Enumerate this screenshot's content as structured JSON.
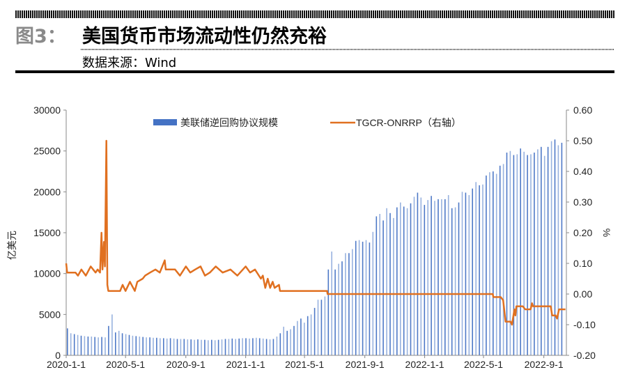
{
  "header": {
    "figure_label": "图3：",
    "title": "美国货币市场流动性仍然充裕",
    "source": "数据来源：Wind"
  },
  "colors": {
    "bars": "#4472c4",
    "line": "#e07020",
    "title_gray": "#8a8a8a"
  },
  "chart_data": {
    "type": "bar+line",
    "title": "美国货币市场流动性仍然充裕",
    "ylabel": "亿美元",
    "y2label": "%",
    "ylim": [
      0,
      30000
    ],
    "y2lim": [
      -0.2,
      0.6
    ],
    "xlim": [
      "2020-01-01",
      "2022-10-17"
    ],
    "yticks": [
      "0",
      "5000",
      "10000",
      "15000",
      "20000",
      "25000",
      "30000"
    ],
    "y2ticks": [
      "-0.20",
      "-0.10",
      "0.00",
      "0.10",
      "0.20",
      "0.30",
      "0.40",
      "0.50",
      "0.60"
    ],
    "xticks": [
      {
        "date": "2020-01-01",
        "label": "2020-1-1"
      },
      {
        "date": "2020-05-01",
        "label": "2020-5-1"
      },
      {
        "date": "2020-09-01",
        "label": "2020-9-1"
      },
      {
        "date": "2021-01-01",
        "label": "2021-1-1"
      },
      {
        "date": "2021-05-01",
        "label": "2021-5-1"
      },
      {
        "date": "2021-09-01",
        "label": "2021-9-1"
      },
      {
        "date": "2022-01-01",
        "label": "2022-1-1"
      },
      {
        "date": "2022-05-01",
        "label": "2022-5-1"
      },
      {
        "date": "2022-09-01",
        "label": "2022-9-1"
      }
    ],
    "legend": [
      {
        "label": "美联储逆回购协议规模",
        "kind": "bar"
      },
      {
        "label": "TGCR-ONRRP（右轴）",
        "kind": "line"
      }
    ],
    "legend_position": "top",
    "series": [
      {
        "name": "美联储逆回购协议规模",
        "axis": "left",
        "type": "bar",
        "start": "2020-01-01",
        "interval_days": 7,
        "values": [
          3300,
          2700,
          2600,
          2500,
          2400,
          2350,
          2300,
          2300,
          2250,
          2200,
          2250,
          2200,
          3600,
          5000,
          2800,
          3000,
          2700,
          2600,
          2500,
          2400,
          2350,
          2300,
          2250,
          2200,
          2200,
          2150,
          2150,
          2100,
          2100,
          2050,
          2100,
          2050,
          2000,
          2000,
          2000,
          1950,
          1950,
          1900,
          1950,
          1900,
          1900,
          1850,
          1900,
          1850,
          1900,
          1950,
          2000,
          2000,
          2050,
          2000,
          2050,
          2100,
          2100,
          2050,
          2100,
          2150,
          2100,
          2050,
          2000,
          1950,
          2000,
          2300,
          2700,
          3500,
          3000,
          3200,
          3600,
          4200,
          4500,
          4000,
          4800,
          5000,
          5800,
          6800,
          6800,
          7200,
          10500,
          12700,
          10500,
          11200,
          11500,
          12500,
          12500,
          13000,
          14000,
          14100,
          13900,
          14100,
          13800,
          15100,
          17000,
          17300,
          16500,
          18000,
          17400,
          16800,
          18100,
          18700,
          18200,
          18000,
          18600,
          19400,
          19900,
          19300,
          18400,
          19000,
          19500,
          18900,
          19100,
          19100,
          19100,
          19600,
          18000,
          18100,
          18700,
          20000,
          19900,
          19600,
          20400,
          21200,
          20800,
          20900,
          22000,
          22400,
          22500,
          22200,
          23200,
          23400,
          24800,
          25000,
          24500,
          24600,
          25300,
          24900,
          24500,
          24600,
          24800,
          25200,
          25500,
          24400,
          25500,
          26200,
          26400,
          25700,
          26000
        ]
      },
      {
        "name": "TGCR-ONRRP（右轴）",
        "axis": "right",
        "type": "line",
        "points": [
          [
            "2020-01-01",
            0.1
          ],
          [
            "2020-01-03",
            0.07
          ],
          [
            "2020-01-20",
            0.07
          ],
          [
            "2020-01-25",
            0.06
          ],
          [
            "2020-02-01",
            0.08
          ],
          [
            "2020-02-10",
            0.06
          ],
          [
            "2020-02-20",
            0.09
          ],
          [
            "2020-03-01",
            0.07
          ],
          [
            "2020-03-05",
            0.08
          ],
          [
            "2020-03-10",
            0.07
          ],
          [
            "2020-03-13",
            0.2
          ],
          [
            "2020-03-15",
            0.08
          ],
          [
            "2020-03-18",
            0.17
          ],
          [
            "2020-03-20",
            0.09
          ],
          [
            "2020-03-23",
            0.5
          ],
          [
            "2020-03-25",
            0.03
          ],
          [
            "2020-03-27",
            0.01
          ],
          [
            "2020-04-20",
            0.01
          ],
          [
            "2020-04-25",
            0.03
          ],
          [
            "2020-05-01",
            0.01
          ],
          [
            "2020-05-10",
            0.04
          ],
          [
            "2020-05-20",
            0.01
          ],
          [
            "2020-05-25",
            0.04
          ],
          [
            "2020-06-05",
            0.05
          ],
          [
            "2020-06-10",
            0.06
          ],
          [
            "2020-06-20",
            0.07
          ],
          [
            "2020-07-01",
            0.08
          ],
          [
            "2020-07-10",
            0.07
          ],
          [
            "2020-07-20",
            0.11
          ],
          [
            "2020-07-22",
            0.08
          ],
          [
            "2020-08-10",
            0.08
          ],
          [
            "2020-08-20",
            0.06
          ],
          [
            "2020-09-01",
            0.09
          ],
          [
            "2020-09-10",
            0.07
          ],
          [
            "2020-09-20",
            0.08
          ],
          [
            "2020-10-01",
            0.09
          ],
          [
            "2020-10-10",
            0.06
          ],
          [
            "2020-10-20",
            0.07
          ],
          [
            "2020-11-01",
            0.09
          ],
          [
            "2020-11-15",
            0.07
          ],
          [
            "2020-12-01",
            0.08
          ],
          [
            "2020-12-15",
            0.06
          ],
          [
            "2021-01-01",
            0.09
          ],
          [
            "2021-01-10",
            0.07
          ],
          [
            "2021-01-20",
            0.08
          ],
          [
            "2021-02-01",
            0.05
          ],
          [
            "2021-02-05",
            0.06
          ],
          [
            "2021-02-10",
            0.02
          ],
          [
            "2021-02-15",
            0.05
          ],
          [
            "2021-02-20",
            0.02
          ],
          [
            "2021-02-25",
            0.04
          ],
          [
            "2021-03-01",
            0.02
          ],
          [
            "2021-03-10",
            0.03
          ],
          [
            "2021-03-12",
            0.01
          ],
          [
            "2021-06-16",
            0.01
          ],
          [
            "2021-06-17",
            0.0
          ],
          [
            "2022-05-20",
            0.0
          ],
          [
            "2022-05-21",
            -0.01
          ],
          [
            "2022-06-05",
            -0.01
          ],
          [
            "2022-06-10",
            -0.02
          ],
          [
            "2022-06-15",
            -0.09
          ],
          [
            "2022-06-25",
            -0.09
          ],
          [
            "2022-06-28",
            -0.1
          ],
          [
            "2022-07-01",
            -0.07
          ],
          [
            "2022-07-03",
            -0.05
          ],
          [
            "2022-07-05",
            -0.07
          ],
          [
            "2022-07-07",
            -0.04
          ],
          [
            "2022-07-20",
            -0.04
          ],
          [
            "2022-07-25",
            -0.05
          ],
          [
            "2022-08-05",
            -0.05
          ],
          [
            "2022-08-08",
            -0.03
          ],
          [
            "2022-08-10",
            -0.04
          ],
          [
            "2022-09-15",
            -0.04
          ],
          [
            "2022-09-18",
            -0.07
          ],
          [
            "2022-09-25",
            -0.07
          ],
          [
            "2022-09-28",
            -0.08
          ],
          [
            "2022-10-02",
            -0.05
          ],
          [
            "2022-10-15",
            -0.05
          ]
        ]
      }
    ]
  }
}
